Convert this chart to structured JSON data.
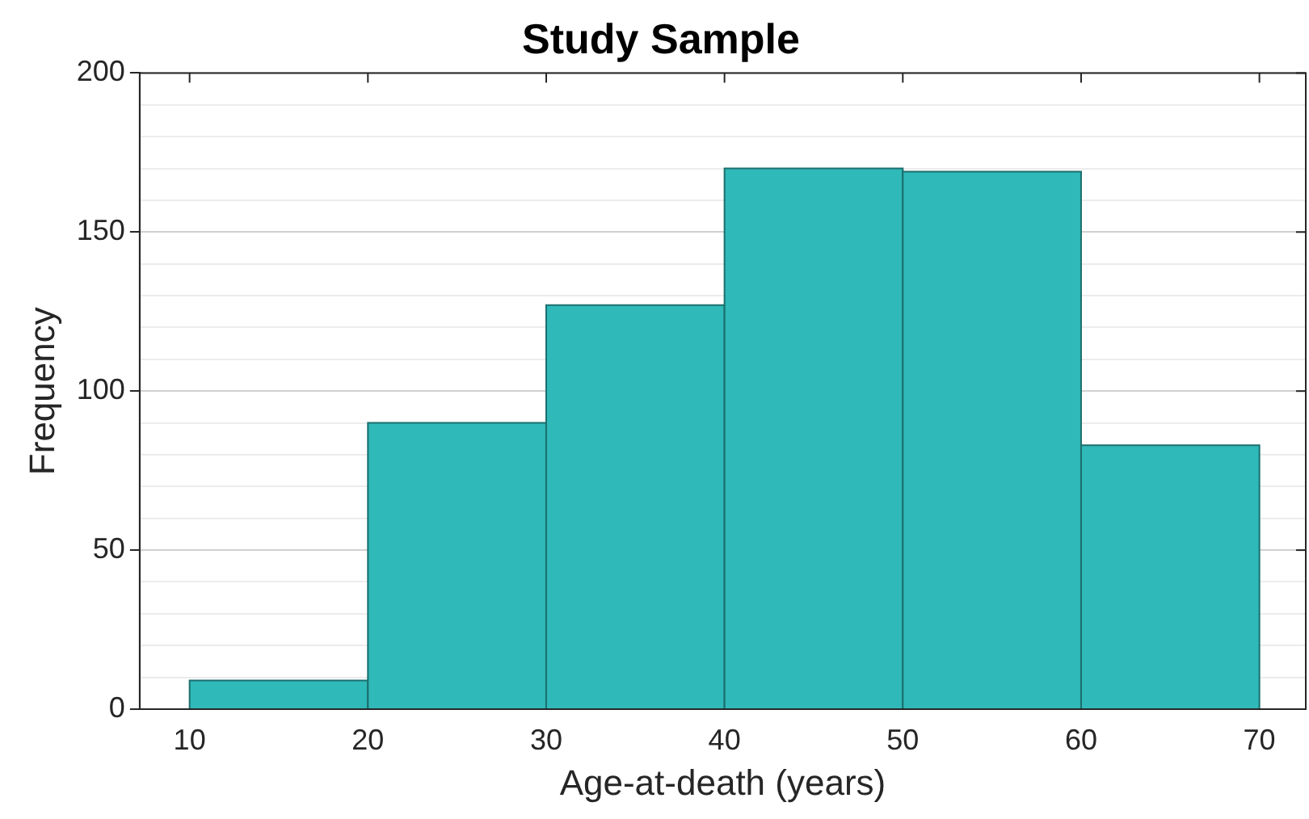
{
  "chart_data": {
    "type": "histogram",
    "title": "Study Sample",
    "xlabel": "Age-at-death (years)",
    "ylabel": "Frequency",
    "bins": [
      10,
      20,
      30,
      40,
      50,
      60,
      70
    ],
    "values": [
      9,
      90,
      127,
      170,
      169,
      83
    ],
    "color": "#2fb9b8",
    "xlim": [
      7.2,
      72.6
    ],
    "xticks": [
      10,
      20,
      30,
      40,
      50,
      60,
      70
    ],
    "ylim": [
      0,
      200
    ],
    "yticks": [
      0,
      {
        "value": 10,
        "label": null
      },
      {
        "value": 20,
        "label": null
      },
      {
        "value": 30,
        "label": null
      },
      {
        "value": 40,
        "label": null
      },
      50,
      {
        "value": 60,
        "label": null
      },
      {
        "value": 70,
        "label": null
      },
      {
        "value": 80,
        "label": null
      },
      {
        "value": 90,
        "label": null
      },
      100,
      {
        "value": 110,
        "label": null
      },
      {
        "value": 120,
        "label": null
      },
      {
        "value": 130,
        "label": null
      },
      {
        "value": 140,
        "label": null
      },
      150,
      {
        "value": 160,
        "label": null
      },
      {
        "value": 170,
        "label": null
      },
      {
        "value": 180,
        "label": null
      },
      {
        "value": 190,
        "label": null
      },
      200
    ],
    "grid": "y",
    "legend": false
  }
}
